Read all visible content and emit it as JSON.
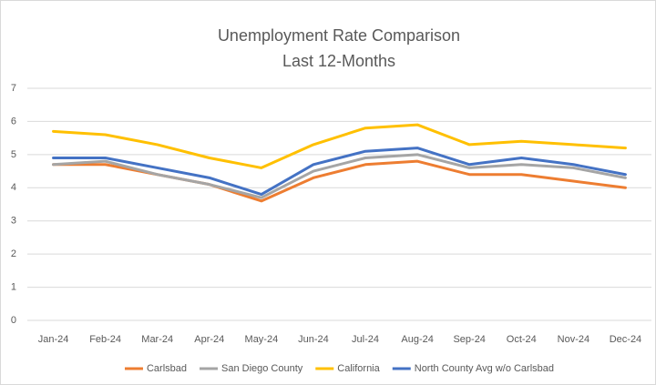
{
  "chart_data": {
    "type": "line",
    "title": "Unemployment Rate Comparison",
    "subtitle": "Last 12-Months",
    "categories": [
      "Jan-24",
      "Feb-24",
      "Mar-24",
      "Apr-24",
      "May-24",
      "Jun-24",
      "Jul-24",
      "Aug-24",
      "Sep-24",
      "Oct-24",
      "Nov-24",
      "Dec-24"
    ],
    "series": [
      {
        "name": "Carlsbad",
        "color": "#ed7d31",
        "values": [
          4.7,
          4.7,
          4.4,
          4.1,
          3.6,
          4.3,
          4.7,
          4.8,
          4.4,
          4.4,
          4.2,
          4.0
        ]
      },
      {
        "name": "San Diego County",
        "color": "#a5a5a5",
        "values": [
          4.7,
          4.8,
          4.4,
          4.1,
          3.7,
          4.5,
          4.9,
          5.0,
          4.6,
          4.7,
          4.6,
          4.3
        ]
      },
      {
        "name": "California",
        "color": "#ffc000",
        "values": [
          5.7,
          5.6,
          5.3,
          4.9,
          4.6,
          5.3,
          5.8,
          5.9,
          5.3,
          5.4,
          5.3,
          5.2
        ]
      },
      {
        "name": "North County Avg w/o Carlsbad",
        "color": "#4472c4",
        "values": [
          4.9,
          4.9,
          4.6,
          4.3,
          3.8,
          4.7,
          5.1,
          5.2,
          4.7,
          4.9,
          4.7,
          4.4
        ]
      }
    ],
    "ylim": [
      0,
      7
    ],
    "yticks": [
      0,
      1,
      2,
      3,
      4,
      5,
      6,
      7
    ],
    "grid": true,
    "legend": "bottom"
  }
}
